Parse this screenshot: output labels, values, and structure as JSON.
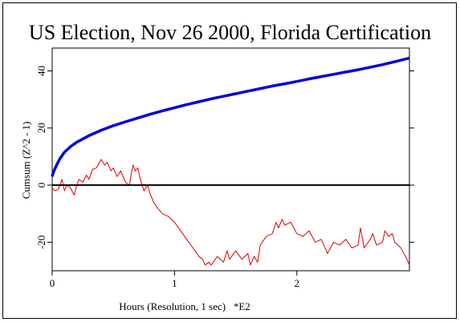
{
  "title": "US Election, Nov 26 2000, Florida Certification",
  "chart_data": {
    "type": "line",
    "title": "US Election, Nov 26 2000, Florida Certification",
    "xlabel": "Hours (Resolution, 1 sec)   *E2",
    "ylabel": "Cumsum (Z^2 - 1)",
    "xlim": [
      0,
      2.92
    ],
    "ylim": [
      -30,
      48
    ],
    "x_ticks": [
      0,
      1,
      2
    ],
    "x_tick_labels": [
      "0",
      "1",
      "2"
    ],
    "y_ticks": [
      -20,
      0,
      20,
      40
    ],
    "y_tick_labels": [
      "-20",
      "0",
      "20",
      "40"
    ],
    "grid": false,
    "reference_line_y": 0,
    "series": [
      {
        "color": "#0000dd",
        "x": [
          0.0,
          0.01,
          0.03,
          0.06,
          0.1,
          0.15,
          0.2,
          0.3,
          0.4,
          0.5,
          0.6,
          0.7,
          0.8,
          0.9,
          1.0,
          1.1,
          1.2,
          1.3,
          1.4,
          1.5,
          1.6,
          1.7,
          1.8,
          1.9,
          2.0,
          2.1,
          2.2,
          2.3,
          2.4,
          2.5,
          2.6,
          2.7,
          2.8,
          2.92
        ],
        "y": [
          3.0,
          4.5,
          6.5,
          9.0,
          11.5,
          13.5,
          15.0,
          17.3,
          19.2,
          20.8,
          22.2,
          23.5,
          24.8,
          26.0,
          27.1,
          28.2,
          29.2,
          30.2,
          31.1,
          32.0,
          32.9,
          33.8,
          34.7,
          35.5,
          36.3,
          37.2,
          38.0,
          38.8,
          39.6,
          40.4,
          41.3,
          42.2,
          43.2,
          44.5
        ]
      },
      {
        "color": "#dd0000",
        "x": [
          0.0,
          0.02,
          0.05,
          0.08,
          0.1,
          0.12,
          0.15,
          0.18,
          0.2,
          0.22,
          0.25,
          0.28,
          0.3,
          0.33,
          0.36,
          0.4,
          0.43,
          0.45,
          0.48,
          0.5,
          0.53,
          0.56,
          0.6,
          0.63,
          0.66,
          0.68,
          0.7,
          0.72,
          0.75,
          0.78,
          0.8,
          0.83,
          0.86,
          0.9,
          0.95,
          1.0,
          1.05,
          1.1,
          1.15,
          1.2,
          1.23,
          1.25,
          1.28,
          1.3,
          1.35,
          1.4,
          1.43,
          1.45,
          1.5,
          1.55,
          1.6,
          1.62,
          1.65,
          1.68,
          1.7,
          1.75,
          1.8,
          1.83,
          1.85,
          1.88,
          1.9,
          1.95,
          2.0,
          2.05,
          2.1,
          2.15,
          2.2,
          2.25,
          2.3,
          2.35,
          2.4,
          2.45,
          2.5,
          2.52,
          2.55,
          2.6,
          2.62,
          2.65,
          2.7,
          2.72,
          2.75,
          2.78,
          2.8,
          2.85,
          2.9,
          2.92
        ],
        "y": [
          -1.0,
          -2.0,
          -1.5,
          2.0,
          -2.0,
          0.0,
          -1.0,
          -3.5,
          0.0,
          2.0,
          1.0,
          3.5,
          2.0,
          5.5,
          6.0,
          9.0,
          7.0,
          8.0,
          5.0,
          6.0,
          3.0,
          5.0,
          1.0,
          0.0,
          7.0,
          5.0,
          6.0,
          2.0,
          -2.0,
          0.0,
          -3.0,
          -6.0,
          -8.0,
          -10.0,
          -11.0,
          -13.0,
          -16.0,
          -19.0,
          -22.0,
          -25.0,
          -26.0,
          -28.0,
          -27.0,
          -28.0,
          -25.0,
          -27.0,
          -23.0,
          -26.0,
          -23.0,
          -26.0,
          -24.0,
          -28.0,
          -25.0,
          -27.0,
          -21.0,
          -18.0,
          -17.0,
          -13.0,
          -15.0,
          -12.0,
          -14.0,
          -13.0,
          -17.0,
          -18.0,
          -16.0,
          -20.0,
          -19.0,
          -24.0,
          -20.0,
          -21.0,
          -19.0,
          -22.0,
          -21.0,
          -15.0,
          -22.0,
          -19.0,
          -17.0,
          -21.0,
          -20.0,
          -16.0,
          -18.0,
          -17.0,
          -20.0,
          -22.0,
          -26.0,
          -28.0
        ]
      }
    ]
  }
}
